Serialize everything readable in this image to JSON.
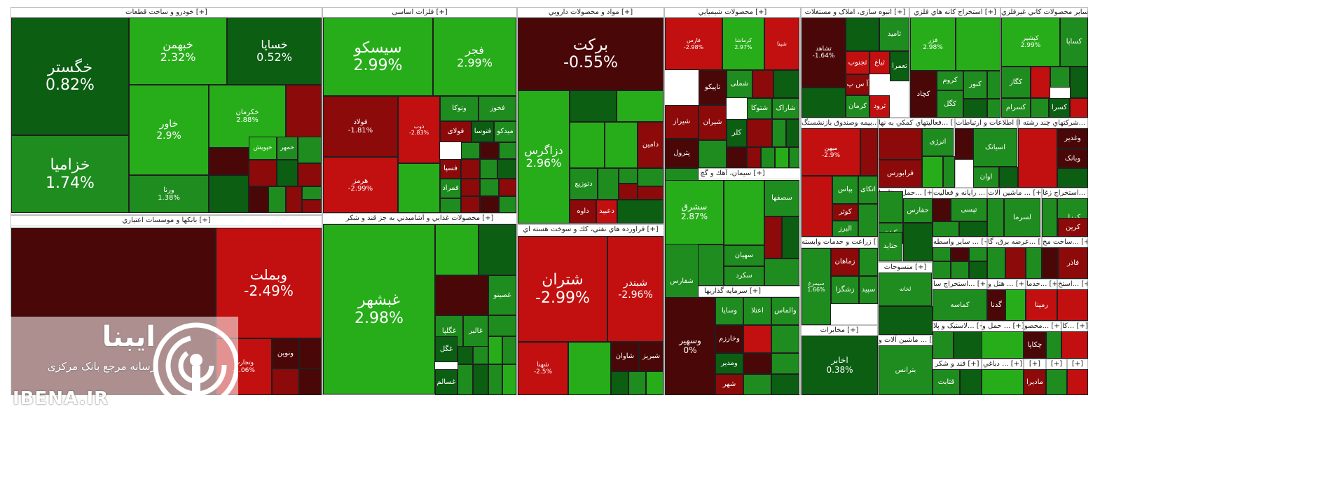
{
  "colors": {
    "dark_green": "#0b5e12",
    "green": "#1e8c1e",
    "bright_green": "#27ad1a",
    "dark_red": "#4a0707",
    "red": "#8c0a0a",
    "bright_red": "#c20f0f"
  },
  "watermark": {
    "brand": "ایبنا",
    "subtitle": "رسانه مرجع بانک مرکزی",
    "url": "IBENA.IR",
    "icon": "broadcast-signal-icon"
  },
  "sectors": [
    {
      "key": "auto",
      "title": "خودرو و ساخت قطعات [+]"
    },
    {
      "key": "metals",
      "title": "فلزات اساسی [+]"
    },
    {
      "key": "pharma",
      "title": "مواد و محصولات دارويي [+]"
    },
    {
      "key": "chem",
      "title": "محصولات شيميايي [+]"
    },
    {
      "key": "realestate",
      "title": "انبوه سازی، املاک و مستغلات [+]"
    },
    {
      "key": "metalmining",
      "title": "استخراج كانه هاي فلزي [+]"
    },
    {
      "key": "othermining",
      "title": "ساير محصولات كاني غيرفلزي [+]"
    },
    {
      "key": "banks",
      "title": "بانكها و موسسات اعتباري [+]"
    },
    {
      "key": "food",
      "title": "محصولات غذايي و آشاميدني به جز قند و شكر [+]"
    },
    {
      "key": "refinery",
      "title": "فراورده هاي نفتي، كك و سوخت هسته اي [+]"
    },
    {
      "key": "cement",
      "title": "سيمان، آهك و گچ [+]"
    },
    {
      "key": "investment",
      "title": "سرمايه گذاريها [+]"
    },
    {
      "key": "insurance",
      "title": "بيمه وصندوق بازنشستگ... [+]"
    },
    {
      "key": "multidisc",
      "title": "فعاليتهاي كمكي به نها... [+]"
    },
    {
      "key": "it",
      "title": "اطلاعات و ارتباطات [+]"
    },
    {
      "key": "holding",
      "title": "شركتهاي چند رشته ا... [+]"
    },
    {
      "key": "transport",
      "title": "حمل ونقل، ا... [+]"
    },
    {
      "key": "computer",
      "title": "رايانه و فعاليت ... [+]"
    },
    {
      "key": "machinery",
      "title": "ماشين آلات ... [+]"
    },
    {
      "key": "coal",
      "title": "استخراج زغا... [+]"
    },
    {
      "key": "agri",
      "title": "زراعت و خدمات وابسته [+]"
    },
    {
      "key": "textile",
      "title": "منسوجات [+]"
    },
    {
      "key": "othervehicle",
      "title": "ساير واسطه ... [+]"
    },
    {
      "key": "energy",
      "title": "عرضه برق، گا... [+]"
    },
    {
      "key": "construction",
      "title": "ساخت مح... [+]"
    },
    {
      "key": "oilmining",
      "title": "استخراج سا... [+]"
    },
    {
      "key": "hotel",
      "title": "هتل و ... [+]"
    },
    {
      "key": "services",
      "title": "خدما... [+]"
    },
    {
      "key": "other1",
      "title": "استخ... [+]"
    },
    {
      "key": "comms",
      "title": "مخابرات [+]"
    },
    {
      "key": "electric",
      "title": "ماشين آلات و ... [+]"
    },
    {
      "key": "rubber",
      "title": "لاستيک و پلا... [+]"
    },
    {
      "key": "transport2",
      "title": "حمل و ... [+]"
    },
    {
      "key": "product",
      "title": "محصو... [+]"
    },
    {
      "key": "ka",
      "title": "کا... [+]"
    },
    {
      "key": "sugar",
      "title": "قند و شكر [+]"
    },
    {
      "key": "wood",
      "title": "دباغي ... [+]"
    },
    {
      "key": "s1",
      "title": "[+]"
    },
    {
      "key": "s2",
      "title": "[+]"
    },
    {
      "key": "s3",
      "title": "[+]"
    }
  ],
  "tiles": [
    {
      "name": "خگستر",
      "pct": "0.82%",
      "c": "dark_green"
    },
    {
      "name": "خبهمن",
      "pct": "2.32%",
      "c": "bright_green"
    },
    {
      "name": "خساپا",
      "pct": "0.52%",
      "c": "dark_green"
    },
    {
      "name": "خزامیا",
      "pct": "1.74%",
      "c": "green"
    },
    {
      "name": "خاور",
      "pct": "2.9%",
      "c": "bright_green"
    },
    {
      "name": "خکرمان",
      "pct": "2.88%",
      "c": "bright_green"
    },
    {
      "name": "ورنا",
      "pct": "1.38%",
      "c": "green"
    },
    {
      "name": "خپویش",
      "pct": "",
      "c": "bright_green"
    },
    {
      "name": "خمهر",
      "pct": "",
      "c": "green"
    },
    {
      "name": "سیسکو",
      "pct": "2.99%",
      "c": "bright_green"
    },
    {
      "name": "فجر",
      "pct": "2.99%",
      "c": "bright_green"
    },
    {
      "name": "فولاد",
      "pct": "-1.81%",
      "c": "red"
    },
    {
      "name": "هرمز",
      "pct": "-2.99%",
      "c": "bright_red"
    },
    {
      "name": "ذوب",
      "pct": "-2.83%",
      "c": "bright_red"
    },
    {
      "name": "فخوز",
      "pct": "",
      "c": "green"
    },
    {
      "name": "وتوکا",
      "pct": "",
      "c": "green"
    },
    {
      "name": "فولای",
      "pct": "",
      "c": "red"
    },
    {
      "name": "فتوسا",
      "pct": "",
      "c": "dark_green"
    },
    {
      "name": "میدکو",
      "pct": "",
      "c": "green"
    },
    {
      "name": "فسپا",
      "pct": "",
      "c": "red"
    },
    {
      "name": "فمراد",
      "pct": "",
      "c": "green"
    },
    {
      "name": "برکت",
      "pct": "-0.55%",
      "c": "dark_red"
    },
    {
      "name": "دزاگرس",
      "pct": "2.96%",
      "c": "bright_green"
    },
    {
      "name": "دامین",
      "pct": "",
      "c": "red"
    },
    {
      "name": "داوه",
      "pct": "",
      "c": "red"
    },
    {
      "name": "دعبید",
      "pct": "",
      "c": "bright_red"
    },
    {
      "name": "دتوزیع",
      "pct": "",
      "c": "green"
    },
    {
      "name": "فارس",
      "pct": "-2.98%",
      "c": "bright_red"
    },
    {
      "name": "کرماشا",
      "pct": "2.97%",
      "c": "bright_green"
    },
    {
      "name": "شپنا",
      "pct": "",
      "c": "bright_red"
    },
    {
      "name": "شیراز",
      "pct": "",
      "c": "red"
    },
    {
      "name": "تاپیکو",
      "pct": "",
      "c": "dark_red"
    },
    {
      "name": "شملی",
      "pct": "",
      "c": "green"
    },
    {
      "name": "پترول",
      "pct": "",
      "c": "dark_red"
    },
    {
      "name": "شیران",
      "pct": "",
      "c": "red"
    },
    {
      "name": "شفارس",
      "pct": "",
      "c": "green"
    },
    {
      "name": "شتوکا",
      "pct": "",
      "c": "green"
    },
    {
      "name": "شاراک",
      "pct": "",
      "c": "green"
    },
    {
      "name": "کلر",
      "pct": "",
      "c": "dark_green"
    },
    {
      "name": "تشاهد",
      "pct": "-1.64%",
      "c": "dark_red"
    },
    {
      "name": "ثامید",
      "pct": "",
      "c": "green"
    },
    {
      "name": "ثعمرا",
      "pct": "",
      "c": "dark_green"
    },
    {
      "name": "ثباغ",
      "pct": "",
      "c": "bright_red"
    },
    {
      "name": "ثجنوب",
      "pct": "",
      "c": "bright_red"
    },
    {
      "name": "آ س پ",
      "pct": "",
      "c": "red"
    },
    {
      "name": "کرمان",
      "pct": "",
      "c": "green"
    },
    {
      "name": "ثرود",
      "pct": "",
      "c": "bright_red"
    },
    {
      "name": "فزر",
      "pct": "2.98%",
      "c": "bright_green"
    },
    {
      "name": "کچاد",
      "pct": "",
      "c": "dark_red"
    },
    {
      "name": "کروم",
      "pct": "",
      "c": "green"
    },
    {
      "name": "کنور",
      "pct": "",
      "c": "green"
    },
    {
      "name": "کگل",
      "pct": "",
      "c": "green"
    },
    {
      "name": "کساپا",
      "pct": "",
      "c": "green"
    },
    {
      "name": "کپشیر",
      "pct": "2.99%",
      "c": "bright_green"
    },
    {
      "name": "کگاز",
      "pct": "",
      "c": "green"
    },
    {
      "name": "کسرام",
      "pct": "",
      "c": "green"
    },
    {
      "name": "کسرا",
      "pct": "",
      "c": "dark_green"
    },
    {
      "name": "وبملت",
      "pct": "-2.49%",
      "c": "bright_red"
    },
    {
      "name": "ونوین",
      "pct": "",
      "c": "dark_red"
    },
    {
      "name": "وتجارت",
      "pct": "-2.06%",
      "c": "bright_red"
    },
    {
      "name": "غبشهر",
      "pct": "2.98%",
      "c": "bright_green"
    },
    {
      "name": "غصینو",
      "pct": "",
      "c": "green"
    },
    {
      "name": "غگلپا",
      "pct": "",
      "c": "green"
    },
    {
      "name": "غالبر",
      "pct": "",
      "c": "green"
    },
    {
      "name": "غگل",
      "pct": "",
      "c": "dark_green"
    },
    {
      "name": "غسالم",
      "pct": "",
      "c": "dark_green"
    },
    {
      "name": "شتران",
      "pct": "-2.99%",
      "c": "bright_red"
    },
    {
      "name": "شبندر",
      "pct": "-2.96%",
      "c": "bright_red"
    },
    {
      "name": "شهنا",
      "pct": "-2.5%",
      "c": "bright_red"
    },
    {
      "name": "شاوان",
      "pct": "",
      "c": "dark_red"
    },
    {
      "name": "شبریز",
      "pct": "",
      "c": "dark_red"
    },
    {
      "name": "سصفها",
      "pct": "",
      "c": "green"
    },
    {
      "name": "سشرق",
      "pct": "2.87%",
      "c": "bright_green"
    },
    {
      "name": "سهیان",
      "pct": "",
      "c": "green"
    },
    {
      "name": "سکرد",
      "pct": "",
      "c": "green"
    },
    {
      "name": "وسهیر",
      "pct": "0%",
      "c": "dark_red"
    },
    {
      "name": "اعتلا",
      "pct": "",
      "c": "green"
    },
    {
      "name": "والماس",
      "pct": "",
      "c": "green"
    },
    {
      "name": "وخارزم",
      "pct": "",
      "c": "dark_red"
    },
    {
      "name": "ومدیر",
      "pct": "",
      "c": "dark_green"
    },
    {
      "name": "وسایا",
      "pct": "",
      "c": "green"
    },
    {
      "name": "شهر",
      "pct": "",
      "c": "red"
    },
    {
      "name": "میهن",
      "pct": "-2.9%",
      "c": "bright_red"
    },
    {
      "name": "بپاس",
      "pct": "",
      "c": "green"
    },
    {
      "name": "کوثر",
      "pct": "",
      "c": "red"
    },
    {
      "name": "البرز",
      "pct": "",
      "c": "green"
    },
    {
      "name": "اتکای",
      "pct": "",
      "c": "green"
    },
    {
      "name": "انرژی",
      "pct": "",
      "c": "green"
    },
    {
      "name": "فرابورس",
      "pct": "",
      "c": "red"
    },
    {
      "name": "اسیاتک",
      "pct": "",
      "c": "green"
    },
    {
      "name": "اوان",
      "pct": "",
      "c": "green"
    },
    {
      "name": "وغدیر",
      "pct": "",
      "c": "dark_red"
    },
    {
      "name": "وبانک",
      "pct": "",
      "c": "dark_red"
    },
    {
      "name": "حفارس",
      "pct": "",
      "c": "green"
    },
    {
      "name": "حکشتی",
      "pct": "",
      "c": "green"
    },
    {
      "name": "حتاید",
      "pct": "",
      "c": "green"
    },
    {
      "name": "تپسی",
      "pct": "",
      "c": "green"
    },
    {
      "name": "لسرما",
      "pct": "",
      "c": "green"
    },
    {
      "name": "کرزل",
      "pct": "",
      "c": "green"
    },
    {
      "name": "کرین",
      "pct": "",
      "c": "red"
    },
    {
      "name": "زماهان",
      "pct": "",
      "c": "red"
    },
    {
      "name": "زشگزا",
      "pct": "",
      "c": "green"
    },
    {
      "name": "سپید",
      "pct": "",
      "c": "green"
    },
    {
      "name": "سیمرغ",
      "pct": "1.66%",
      "c": "green"
    },
    {
      "name": "لخانه",
      "pct": "",
      "c": "green"
    },
    {
      "name": "فاذر",
      "pct": "",
      "c": "red"
    },
    {
      "name": "کماسه",
      "pct": "",
      "c": "green"
    },
    {
      "name": "گدنا",
      "pct": "",
      "c": "dark_red"
    },
    {
      "name": "رمپنا",
      "pct": "",
      "c": "bright_red"
    },
    {
      "name": "اخابر",
      "pct": "0.38%",
      "c": "dark_green"
    },
    {
      "name": "بترانس",
      "pct": "",
      "c": "green"
    },
    {
      "name": "چکاپا",
      "pct": "",
      "c": "dark_red"
    },
    {
      "name": "قثابت",
      "pct": "",
      "c": "green"
    },
    {
      "name": "ماديرا",
      "pct": "",
      "c": "red"
    }
  ]
}
